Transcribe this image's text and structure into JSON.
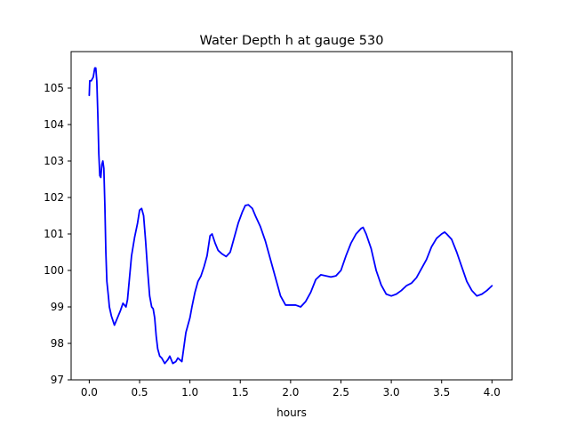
{
  "chart_data": {
    "type": "line",
    "title": "Water Depth h at gauge 530",
    "xlabel": "hours",
    "ylabel": "",
    "xlim": [
      -0.18,
      4.2
    ],
    "ylim": [
      97,
      106
    ],
    "xticks": [
      0.0,
      0.5,
      1.0,
      1.5,
      2.0,
      2.5,
      3.0,
      3.5,
      4.0
    ],
    "xtick_labels": [
      "0.0",
      "0.5",
      "1.0",
      "1.5",
      "2.0",
      "2.5",
      "3.0",
      "3.5",
      "4.0"
    ],
    "yticks": [
      97,
      98,
      99,
      100,
      101,
      102,
      103,
      104,
      105
    ],
    "ytick_labels": [
      "97",
      "98",
      "99",
      "100",
      "101",
      "102",
      "103",
      "104",
      "105"
    ],
    "grid": false,
    "series": [
      {
        "color": "#0000ff",
        "x": [
          0.0,
          0.005,
          0.02,
          0.04,
          0.055,
          0.065,
          0.075,
          0.085,
          0.095,
          0.105,
          0.115,
          0.125,
          0.135,
          0.145,
          0.155,
          0.165,
          0.175,
          0.19,
          0.2,
          0.22,
          0.25,
          0.28,
          0.31,
          0.335,
          0.35,
          0.365,
          0.38,
          0.4,
          0.42,
          0.45,
          0.48,
          0.5,
          0.52,
          0.54,
          0.56,
          0.58,
          0.6,
          0.62,
          0.635,
          0.65,
          0.665,
          0.68,
          0.7,
          0.72,
          0.75,
          0.78,
          0.8,
          0.83,
          0.86,
          0.88,
          0.9,
          0.92,
          0.94,
          0.96,
          0.98,
          1.0,
          1.02,
          1.05,
          1.08,
          1.11,
          1.14,
          1.17,
          1.2,
          1.22,
          1.25,
          1.28,
          1.32,
          1.36,
          1.4,
          1.44,
          1.48,
          1.52,
          1.55,
          1.58,
          1.6,
          1.62,
          1.65,
          1.7,
          1.75,
          1.8,
          1.85,
          1.9,
          1.95,
          2.0,
          2.05,
          2.1,
          2.15,
          2.2,
          2.25,
          2.3,
          2.35,
          2.4,
          2.45,
          2.5,
          2.55,
          2.6,
          2.65,
          2.7,
          2.72,
          2.75,
          2.8,
          2.85,
          2.9,
          2.95,
          3.0,
          3.05,
          3.1,
          3.15,
          3.2,
          3.25,
          3.3,
          3.35,
          3.4,
          3.45,
          3.5,
          3.53,
          3.55,
          3.6,
          3.65,
          3.7,
          3.75,
          3.8,
          3.85,
          3.9,
          3.95,
          4.0
        ],
        "y": [
          104.8,
          105.2,
          105.2,
          105.3,
          105.55,
          105.55,
          105.2,
          104.3,
          103.2,
          102.6,
          102.55,
          102.9,
          103.0,
          102.8,
          101.8,
          100.5,
          99.7,
          99.3,
          99.0,
          98.75,
          98.5,
          98.7,
          98.9,
          99.1,
          99.05,
          99.0,
          99.2,
          99.8,
          100.4,
          100.9,
          101.3,
          101.65,
          101.7,
          101.5,
          100.8,
          100.0,
          99.3,
          99.0,
          98.95,
          98.7,
          98.2,
          97.85,
          97.65,
          97.6,
          97.45,
          97.55,
          97.65,
          97.45,
          97.5,
          97.6,
          97.55,
          97.5,
          97.9,
          98.3,
          98.5,
          98.7,
          99.0,
          99.4,
          99.7,
          99.85,
          100.1,
          100.4,
          100.95,
          101.0,
          100.75,
          100.55,
          100.45,
          100.38,
          100.5,
          100.9,
          101.3,
          101.6,
          101.78,
          101.8,
          101.75,
          101.7,
          101.5,
          101.2,
          100.8,
          100.3,
          99.8,
          99.3,
          99.05,
          99.05,
          99.05,
          99.0,
          99.15,
          99.4,
          99.75,
          99.88,
          99.85,
          99.82,
          99.85,
          100.0,
          100.4,
          100.75,
          101.0,
          101.15,
          101.18,
          101.0,
          100.6,
          100.0,
          99.6,
          99.35,
          99.3,
          99.35,
          99.45,
          99.58,
          99.65,
          99.8,
          100.05,
          100.3,
          100.65,
          100.88,
          101.0,
          101.05,
          101.0,
          100.85,
          100.5,
          100.1,
          99.7,
          99.45,
          99.3,
          99.35,
          99.45,
          99.58
        ]
      }
    ]
  }
}
